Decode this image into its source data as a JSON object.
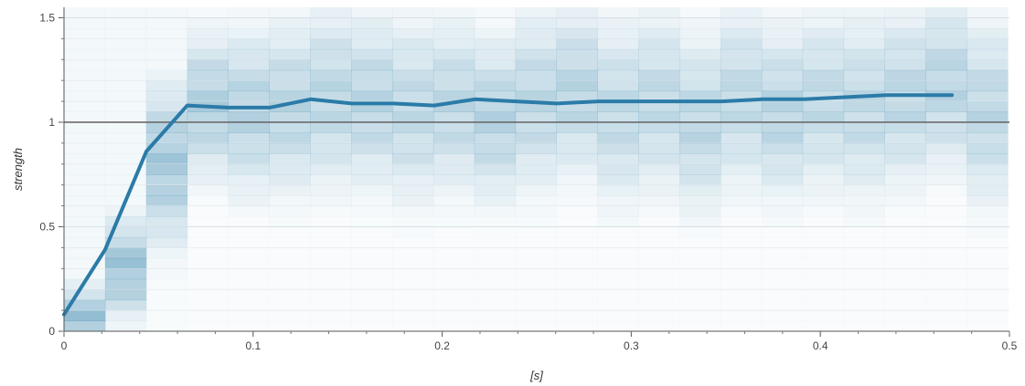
{
  "chart_data": {
    "type": "line",
    "title": "",
    "xlabel": "[s]",
    "ylabel": "strength",
    "xlim": [
      0,
      0.5
    ],
    "ylim": [
      0,
      1.55
    ],
    "x_ticks": [
      0,
      0.1,
      0.2,
      0.3,
      0.4,
      0.5
    ],
    "x_tick_labels": [
      "0",
      "0.1",
      "0.2",
      "0.3",
      "0.4",
      "0.5"
    ],
    "y_ticks": [
      0,
      0.5,
      1,
      1.5
    ],
    "y_tick_labels": [
      "0",
      "0.5",
      "1",
      "1.5"
    ],
    "grid": true,
    "reference_line": {
      "y": 1,
      "color": "#6b6b6b"
    },
    "series": [
      {
        "color": "#2b7ba8",
        "x": [
          0,
          0.0217,
          0.0435,
          0.0652,
          0.087,
          0.1087,
          0.1304,
          0.1522,
          0.1739,
          0.1957,
          0.2174,
          0.2391,
          0.2609,
          0.2826,
          0.3043,
          0.3261,
          0.3478,
          0.3696,
          0.3913,
          0.413,
          0.4348,
          0.4565,
          0.4696
        ],
        "y": [
          0.08,
          0.39,
          0.86,
          1.08,
          1.07,
          1.07,
          1.11,
          1.09,
          1.09,
          1.08,
          1.11,
          1.1,
          1.09,
          1.1,
          1.1,
          1.1,
          1.1,
          1.11,
          1.11,
          1.12,
          1.13,
          1.13,
          1.13
        ]
      }
    ],
    "density": {
      "color": "#3a87ad",
      "x_bin_width": 0.0217,
      "y_bin_height": 0.05,
      "columns": [
        {
          "center": 0.08,
          "spread": 0.09,
          "peak": 0.55,
          "floor": 0.06
        },
        {
          "center": 0.3,
          "spread": 0.15,
          "peak": 0.55,
          "floor": 0.06
        },
        {
          "center": 0.8,
          "spread": 0.25,
          "peak": 0.5,
          "floor": 0.06
        },
        {
          "center": 1.08,
          "spread": 0.22,
          "peak": 0.45,
          "floor": 0.05
        },
        {
          "center": 1.05,
          "spread": 0.25,
          "peak": 0.42,
          "floor": 0.05
        },
        {
          "center": 1.07,
          "spread": 0.26,
          "peak": 0.4,
          "floor": 0.05
        },
        {
          "center": 1.12,
          "spread": 0.28,
          "peak": 0.38,
          "floor": 0.05
        },
        {
          "center": 1.1,
          "spread": 0.26,
          "peak": 0.4,
          "floor": 0.05
        },
        {
          "center": 1.06,
          "spread": 0.28,
          "peak": 0.36,
          "floor": 0.05
        },
        {
          "center": 1.08,
          "spread": 0.26,
          "peak": 0.38,
          "floor": 0.05
        },
        {
          "center": 1.02,
          "spread": 0.25,
          "peak": 0.42,
          "floor": 0.05
        },
        {
          "center": 1.1,
          "spread": 0.27,
          "peak": 0.38,
          "floor": 0.05
        },
        {
          "center": 1.15,
          "spread": 0.26,
          "peak": 0.4,
          "floor": 0.05
        },
        {
          "center": 1.05,
          "spread": 0.28,
          "peak": 0.36,
          "floor": 0.05
        },
        {
          "center": 1.1,
          "spread": 0.28,
          "peak": 0.36,
          "floor": 0.05
        },
        {
          "center": 1.0,
          "spread": 0.27,
          "peak": 0.38,
          "floor": 0.05
        },
        {
          "center": 1.12,
          "spread": 0.28,
          "peak": 0.36,
          "floor": 0.05
        },
        {
          "center": 1.05,
          "spread": 0.26,
          "peak": 0.4,
          "floor": 0.05
        },
        {
          "center": 1.1,
          "spread": 0.27,
          "peak": 0.36,
          "floor": 0.05
        },
        {
          "center": 1.08,
          "spread": 0.28,
          "peak": 0.36,
          "floor": 0.05
        },
        {
          "center": 1.12,
          "spread": 0.27,
          "peak": 0.38,
          "floor": 0.05
        },
        {
          "center": 1.18,
          "spread": 0.26,
          "peak": 0.4,
          "floor": 0.05
        },
        {
          "center": 1.05,
          "spread": 0.28,
          "peak": 0.38,
          "floor": 0.05
        }
      ]
    }
  }
}
